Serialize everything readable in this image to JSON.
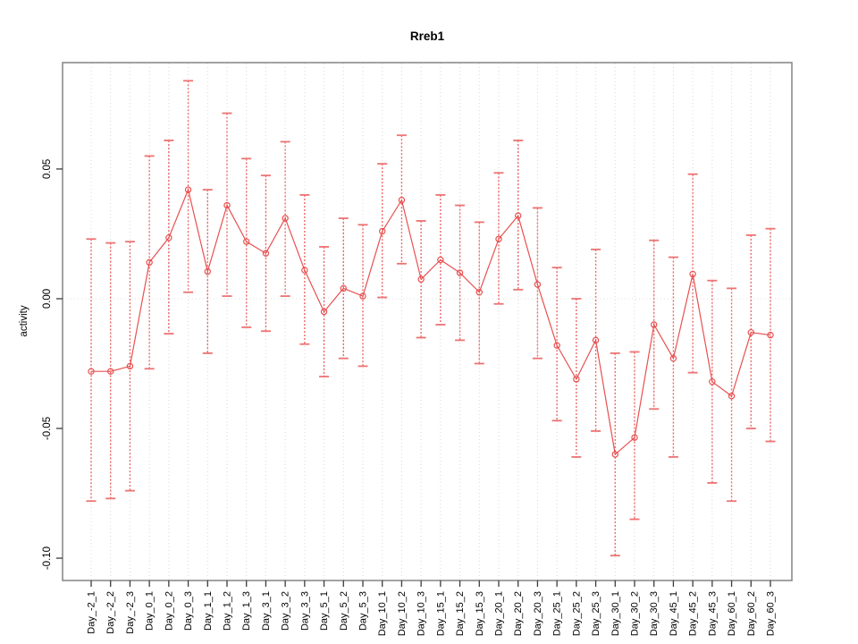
{
  "window": {
    "title": "Rreb1"
  },
  "chart_data": {
    "type": "line",
    "title": "Rreb1",
    "xlabel": "",
    "ylabel": "activity",
    "legend": "none",
    "grid": "vertical dotted gridline at every category; horizontal dotted line at y=0",
    "marker": "open-circle",
    "error_bars": "dotted red stems with flat caps",
    "categories": [
      "Day_-2_1",
      "Day_-2_2",
      "Day_-2_3",
      "Day_0_1",
      "Day_0_2",
      "Day_0_3",
      "Day_1_1",
      "Day_1_2",
      "Day_1_3",
      "Day_3_1",
      "Day_3_2",
      "Day_3_3",
      "Day_5_1",
      "Day_5_2",
      "Day_5_3",
      "Day_10_1",
      "Day_10_2",
      "Day_10_3",
      "Day_15_1",
      "Day_15_2",
      "Day_15_3",
      "Day_20_1",
      "Day_20_2",
      "Day_20_3",
      "Day_25_1",
      "Day_25_2",
      "Day_25_3",
      "Day_30_1",
      "Day_30_2",
      "Day_30_3",
      "Day_45_1",
      "Day_45_2",
      "Day_45_3",
      "Day_60_1",
      "Day_60_2",
      "Day_60_3"
    ],
    "series": [
      {
        "name": "activity",
        "values": [
          -0.028,
          -0.028,
          -0.026,
          0.014,
          0.0235,
          0.042,
          0.0105,
          0.036,
          0.022,
          0.0175,
          0.031,
          0.011,
          -0.005,
          0.004,
          0.001,
          0.026,
          0.038,
          0.0075,
          0.015,
          0.01,
          0.0025,
          0.023,
          0.032,
          0.0055,
          -0.018,
          -0.031,
          -0.016,
          -0.06,
          -0.0535,
          -0.01,
          -0.023,
          0.0095,
          -0.032,
          -0.0375,
          -0.013,
          -0.014
        ],
        "error_upper": [
          0.023,
          0.0215,
          0.022,
          0.055,
          0.061,
          0.084,
          0.042,
          0.0715,
          0.054,
          0.0475,
          0.0605,
          0.04,
          0.02,
          0.031,
          0.0285,
          0.052,
          0.063,
          0.03,
          0.04,
          0.036,
          0.0295,
          0.0485,
          0.061,
          0.035,
          0.012,
          0.0,
          0.019,
          -0.021,
          -0.0205,
          0.0225,
          0.016,
          0.048,
          0.007,
          0.004,
          0.0245,
          0.027
        ],
        "error_lower": [
          -0.078,
          -0.077,
          -0.074,
          -0.027,
          -0.0135,
          0.0025,
          -0.021,
          0.001,
          -0.011,
          -0.0125,
          0.001,
          -0.0175,
          -0.03,
          -0.023,
          -0.026,
          0.0005,
          0.0135,
          -0.015,
          -0.01,
          -0.016,
          -0.025,
          -0.002,
          0.0035,
          -0.023,
          -0.047,
          -0.061,
          -0.051,
          -0.099,
          -0.085,
          -0.0425,
          -0.061,
          -0.0285,
          -0.071,
          -0.078,
          -0.05,
          -0.055
        ]
      }
    ],
    "yticks": [
      0.05,
      0.0,
      -0.05,
      -0.1
    ],
    "ytick_labels": [
      "0.05",
      "0.00",
      "-0.05",
      "-0.10"
    ],
    "ylim": [
      -0.1086,
      0.091
    ],
    "colors": {
      "series": "#e85050",
      "error_stem": "#ed6a6a",
      "error_cap": "#ee7272",
      "zero_line": "#dcdcdc",
      "gridline": "#d9d9d9",
      "box": "#8a8a8a",
      "tick": "#3c3c3c",
      "text": "#000000",
      "background": "#ffffff"
    }
  }
}
